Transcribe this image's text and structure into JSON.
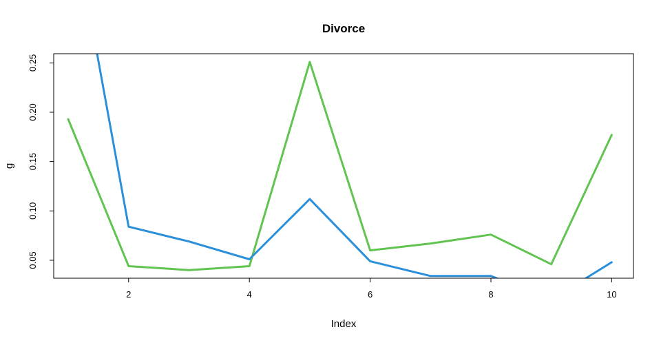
{
  "chart_data": {
    "type": "line",
    "title": "Divorce",
    "xlabel": "Index",
    "ylabel": "g",
    "xlim": [
      0.76,
      10.36
    ],
    "ylim": [
      0.0318,
      0.2593
    ],
    "x_ticks": [
      2,
      4,
      6,
      8,
      10
    ],
    "y_ticks": [
      0.05,
      0.1,
      0.15,
      0.2,
      0.25
    ],
    "y_tick_labels": [
      "0.05",
      "0.10",
      "0.15",
      "0.20",
      "0.25"
    ],
    "grid": false,
    "x": [
      1,
      2,
      3,
      4,
      5,
      6,
      7,
      8,
      9,
      10
    ],
    "series": [
      {
        "color": "#62c450",
        "values": [
          0.193,
          0.044,
          0.04,
          0.044,
          0.251,
          0.06,
          0.067,
          0.076,
          0.046,
          0.177
        ]
      },
      {
        "color": "#2b8fd9",
        "values": [
          0.42,
          0.084,
          0.069,
          0.051,
          0.112,
          0.049,
          0.034,
          0.034,
          0.01,
          0.048
        ]
      }
    ]
  }
}
